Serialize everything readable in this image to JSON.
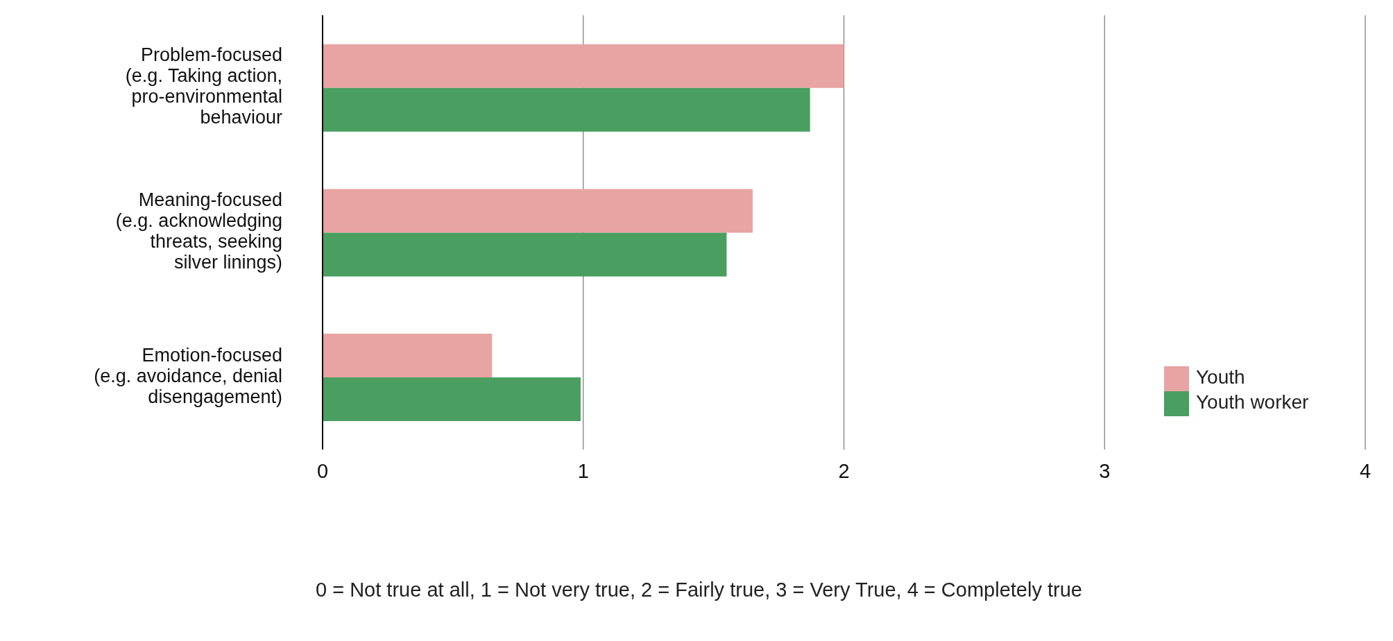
{
  "chart_data": {
    "type": "bar",
    "orientation": "horizontal",
    "categories": [
      "Problem-focused\n(e.g. Taking action,\npro-environmental\nbehaviour",
      "Meaning-focused\n(e.g. acknowledging\nthreats, seeking\nsilver linings)",
      "Emotion-focused\n(e.g. avoidance, denial\ndisengagement)"
    ],
    "series": [
      {
        "name": "Youth",
        "color": "#e8a3a3",
        "values": [
          2.0,
          1.65,
          0.65
        ]
      },
      {
        "name": "Youth worker",
        "color": "#4a9e5f",
        "values": [
          1.87,
          1.55,
          0.99
        ]
      }
    ],
    "xlim": [
      0,
      4
    ],
    "xticks": [
      0,
      1,
      2,
      3,
      4
    ],
    "grid": "x",
    "legend": "right",
    "annotations": [
      "0 = Not true at all, 1 = Not very true, 2  = Fairly true, 3 = Very True, 4 = Completely true"
    ]
  }
}
